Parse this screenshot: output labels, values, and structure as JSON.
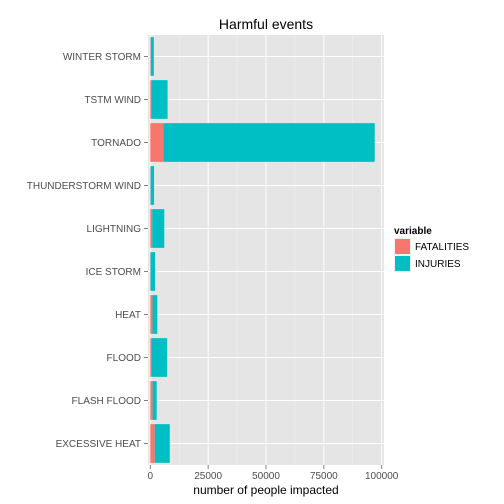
{
  "chart_data": {
    "type": "bar",
    "orientation": "horizontal",
    "stacked": true,
    "title": "Harmful events",
    "xlabel": "number of people impacted",
    "ylabel": "",
    "categories": [
      "EXCESSIVE HEAT",
      "FLASH FLOOD",
      "FLOOD",
      "HEAT",
      "ICE STORM",
      "LIGHTNING",
      "THUNDERSTORM WIND",
      "TORNADO",
      "TSTM WIND",
      "WINTER STORM"
    ],
    "series": [
      {
        "name": "FATALITIES",
        "color": "#f8766d",
        "values": [
          1903,
          978,
          470,
          937,
          89,
          816,
          133,
          5633,
          504,
          206
        ]
      },
      {
        "name": "INJURIES",
        "color": "#00bfc4",
        "values": [
          6525,
          1777,
          6789,
          2100,
          1975,
          5230,
          1488,
          91346,
          6957,
          1321
        ]
      }
    ],
    "xlim": [
      -1000,
      101000
    ],
    "xticks": [
      0,
      25000,
      50000,
      75000,
      100000
    ],
    "xtick_labels": [
      "0",
      "25000",
      "50000",
      "75000",
      "100000"
    ],
    "grid": true,
    "legend": {
      "title": "variable",
      "position": "right"
    },
    "colors": {
      "panel": "#e5e5e5",
      "grid_major": "#ffffff",
      "grid_minor": "#f2f2f2"
    }
  }
}
